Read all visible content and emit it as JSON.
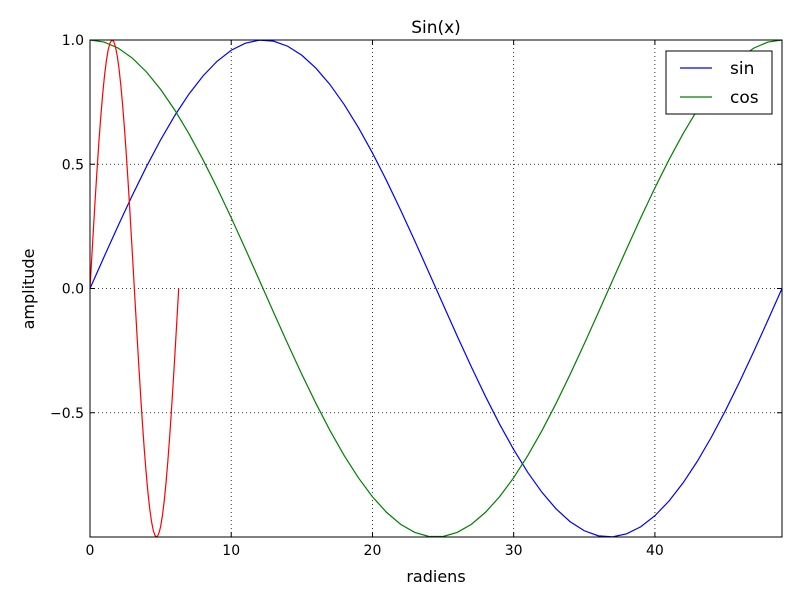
{
  "chart_data": {
    "type": "line",
    "title": "Sin(x)",
    "xlabel": "radiens",
    "ylabel": "amplitude",
    "xlim": [
      0,
      49
    ],
    "ylim": [
      -1,
      1
    ],
    "x_ticks": [
      0,
      10,
      20,
      30,
      40
    ],
    "x_tick_labels": [
      "0",
      "10",
      "20",
      "30",
      "40"
    ],
    "y_ticks": [
      -0.5,
      0.0,
      0.5,
      1.0
    ],
    "y_tick_labels": [
      "−0.5",
      "0.0",
      "0.5",
      "1.0"
    ],
    "grid": true,
    "legend": {
      "placement": "top-right",
      "entries": [
        "sin",
        "cos"
      ]
    },
    "series": [
      {
        "name": "sin",
        "color": "#0000ff",
        "x_start": 0,
        "x_end": 49,
        "count": 50,
        "function": "sin",
        "cycles": 1
      },
      {
        "name": "cos",
        "color": "#008000",
        "x_start": 0,
        "x_end": 49,
        "count": 50,
        "function": "cos",
        "cycles": 1
      },
      {
        "color": "#ff0000",
        "x_start": 0,
        "x_end": 6.28,
        "count": 50,
        "function": "sin",
        "cycles": 1
      }
    ]
  }
}
